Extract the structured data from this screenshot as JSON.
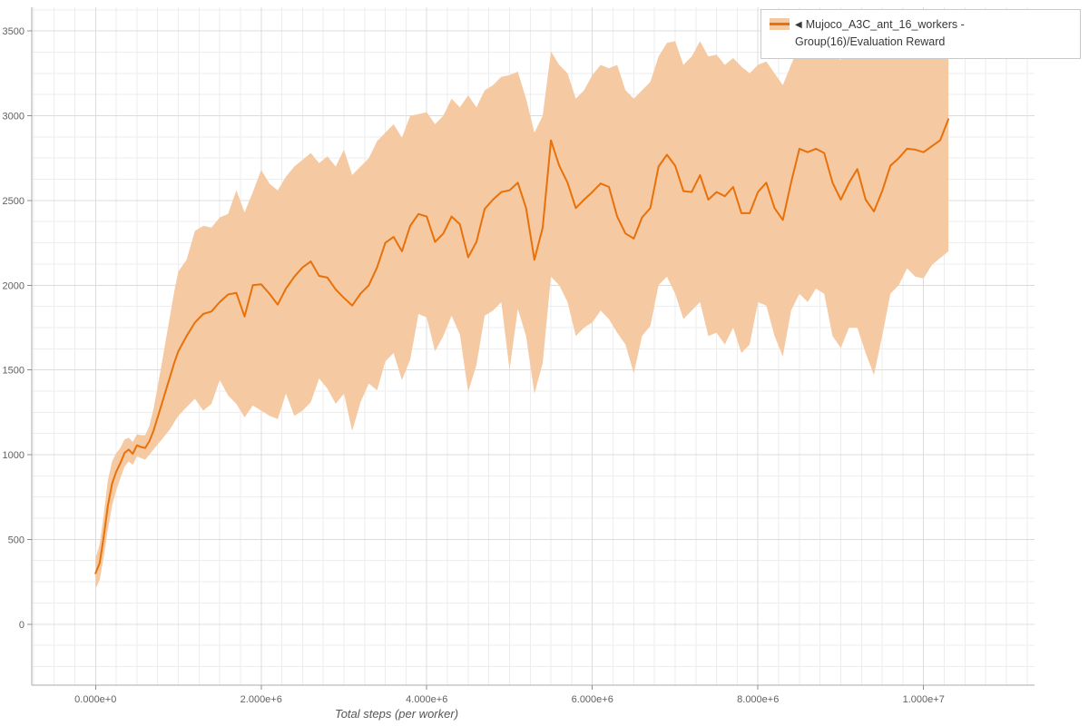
{
  "legend": {
    "marker": "◀",
    "label": "Mujoco_A3C_ant_16_workers - Group(16)/Evaluation Reward"
  },
  "chart_data": {
    "type": "line",
    "title": "",
    "xlabel": "Total steps (per worker)",
    "ylabel": "",
    "x_scale_note": "x values are in millions of steps",
    "xlim": [
      -0.77,
      11.34
    ],
    "ylim": [
      -360,
      3640
    ],
    "grid": {
      "on": true,
      "minor_x_step": 0.25,
      "minor_y_step": 125,
      "minor_color": "#ededed",
      "major_color": "#dcdcdc"
    },
    "axis_color": "#ababab",
    "tick_label_color": "#616161",
    "x_ticks": [
      {
        "value": 0,
        "label": "0.000e+0"
      },
      {
        "value": 2,
        "label": "2.000e+6"
      },
      {
        "value": 4,
        "label": "4.000e+6"
      },
      {
        "value": 6,
        "label": "6.000e+6"
      },
      {
        "value": 8,
        "label": "8.000e+6"
      },
      {
        "value": 10,
        "label": "1.000e+7"
      }
    ],
    "y_ticks": [
      {
        "value": 0,
        "label": "0"
      },
      {
        "value": 500,
        "label": "500"
      },
      {
        "value": 1000,
        "label": "1000"
      },
      {
        "value": 1500,
        "label": "1500"
      },
      {
        "value": 2000,
        "label": "2000"
      },
      {
        "value": 2500,
        "label": "2500"
      },
      {
        "value": 3000,
        "label": "3000"
      },
      {
        "value": 3500,
        "label": "3500"
      }
    ],
    "series": [
      {
        "name": "Mujoco_A3C_ant_16_workers - Group(16)/Evaluation Reward",
        "color": "#e8710a",
        "band_color": "#f5c9a2",
        "x": [
          0,
          0.05,
          0.1,
          0.15,
          0.2,
          0.25,
          0.3,
          0.35,
          0.4,
          0.45,
          0.5,
          0.55,
          0.6,
          0.65,
          0.7,
          0.75,
          0.8,
          0.85,
          0.9,
          0.95,
          1.0,
          1.1,
          1.2,
          1.3,
          1.4,
          1.5,
          1.6,
          1.7,
          1.8,
          1.9,
          2.0,
          2.1,
          2.2,
          2.3,
          2.4,
          2.5,
          2.6,
          2.7,
          2.8,
          2.9,
          3.0,
          3.1,
          3.2,
          3.3,
          3.4,
          3.5,
          3.6,
          3.7,
          3.8,
          3.9,
          4.0,
          4.1,
          4.2,
          4.3,
          4.4,
          4.5,
          4.6,
          4.7,
          4.8,
          4.9,
          5.0,
          5.1,
          5.2,
          5.3,
          5.4,
          5.5,
          5.6,
          5.7,
          5.8,
          5.9,
          6.0,
          6.1,
          6.2,
          6.3,
          6.4,
          6.5,
          6.6,
          6.7,
          6.8,
          6.9,
          7.0,
          7.1,
          7.2,
          7.3,
          7.4,
          7.5,
          7.6,
          7.7,
          7.8,
          7.9,
          8.0,
          8.1,
          8.2,
          8.3,
          8.4,
          8.5,
          8.6,
          8.7,
          8.8,
          8.9,
          9.0,
          9.1,
          9.2,
          9.3,
          9.4,
          9.5,
          9.6,
          9.7,
          9.8,
          9.9,
          10.0,
          10.1,
          10.2,
          10.3
        ],
        "mean": [
          300,
          360,
          520,
          700,
          830,
          900,
          950,
          1010,
          1030,
          1005,
          1055,
          1045,
          1040,
          1080,
          1140,
          1220,
          1300,
          1380,
          1460,
          1540,
          1610,
          1700,
          1780,
          1830,
          1845,
          1900,
          1945,
          1955,
          1815,
          2000,
          2005,
          1950,
          1885,
          1980,
          2050,
          2105,
          2140,
          2055,
          2045,
          1975,
          1925,
          1880,
          1950,
          2000,
          2105,
          2250,
          2285,
          2200,
          2350,
          2420,
          2405,
          2255,
          2305,
          2405,
          2360,
          2165,
          2255,
          2450,
          2505,
          2550,
          2560,
          2605,
          2455,
          2150,
          2340,
          2855,
          2705,
          2605,
          2455,
          2505,
          2550,
          2600,
          2580,
          2405,
          2305,
          2275,
          2400,
          2455,
          2700,
          2770,
          2705,
          2555,
          2550,
          2650,
          2505,
          2550,
          2525,
          2580,
          2425,
          2425,
          2550,
          2605,
          2455,
          2385,
          2605,
          2805,
          2785,
          2805,
          2780,
          2605,
          2505,
          2605,
          2685,
          2505,
          2435,
          2555,
          2705,
          2750,
          2805,
          2800,
          2785,
          2820,
          2855,
          2980
        ],
        "lower": [
          210,
          260,
          400,
          560,
          700,
          790,
          860,
          930,
          960,
          940,
          990,
          980,
          970,
          1000,
          1030,
          1060,
          1090,
          1120,
          1150,
          1190,
          1230,
          1280,
          1330,
          1260,
          1300,
          1440,
          1350,
          1300,
          1220,
          1290,
          1260,
          1230,
          1210,
          1360,
          1230,
          1260,
          1310,
          1450,
          1390,
          1300,
          1360,
          1140,
          1310,
          1420,
          1380,
          1550,
          1600,
          1440,
          1560,
          1830,
          1810,
          1610,
          1700,
          1820,
          1710,
          1370,
          1530,
          1820,
          1850,
          1900,
          1500,
          1860,
          1700,
          1360,
          1540,
          2050,
          2000,
          1900,
          1700,
          1750,
          1780,
          1850,
          1800,
          1720,
          1650,
          1480,
          1700,
          1760,
          2000,
          2050,
          1950,
          1800,
          1850,
          1900,
          1700,
          1720,
          1650,
          1750,
          1600,
          1650,
          1900,
          1880,
          1700,
          1580,
          1850,
          1950,
          1900,
          1980,
          1950,
          1700,
          1630,
          1750,
          1750,
          1600,
          1470,
          1700,
          1950,
          2000,
          2100,
          2050,
          2040,
          2120,
          2160,
          2200
        ],
        "upper": [
          390,
          470,
          650,
          850,
          960,
          1010,
          1040,
          1090,
          1100,
          1075,
          1120,
          1115,
          1115,
          1170,
          1270,
          1400,
          1540,
          1680,
          1820,
          1960,
          2080,
          2150,
          2320,
          2350,
          2340,
          2400,
          2420,
          2560,
          2430,
          2550,
          2680,
          2600,
          2560,
          2640,
          2700,
          2740,
          2780,
          2720,
          2760,
          2700,
          2800,
          2650,
          2700,
          2750,
          2850,
          2900,
          2950,
          2870,
          3000,
          3010,
          3020,
          2950,
          3000,
          3100,
          3050,
          3120,
          3050,
          3150,
          3180,
          3230,
          3240,
          3260,
          3100,
          2900,
          3000,
          3380,
          3300,
          3250,
          3100,
          3150,
          3240,
          3300,
          3280,
          3300,
          3150,
          3100,
          3150,
          3200,
          3350,
          3430,
          3440,
          3300,
          3350,
          3440,
          3350,
          3360,
          3300,
          3340,
          3290,
          3250,
          3300,
          3320,
          3250,
          3180,
          3300,
          3420,
          3380,
          3420,
          3450,
          3350,
          3330,
          3400,
          3500,
          3480,
          3440,
          3460,
          3500,
          3520,
          3560,
          3540,
          3580,
          3600,
          3620,
          3600
        ]
      }
    ]
  }
}
